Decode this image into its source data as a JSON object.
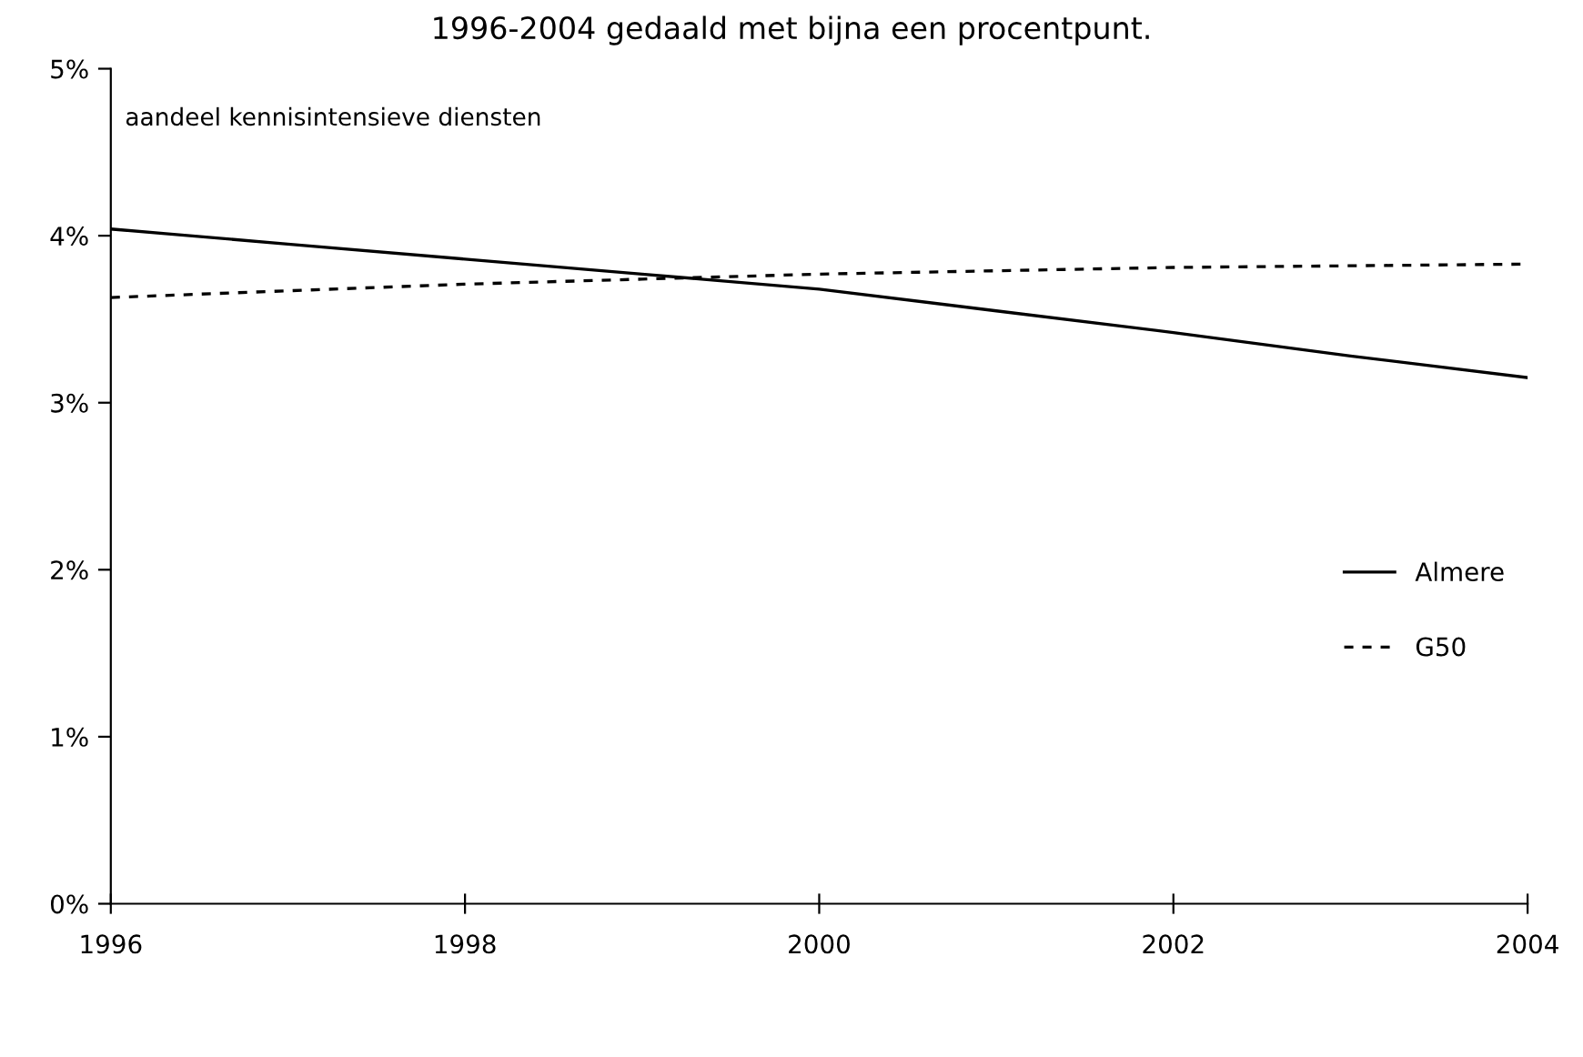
{
  "chart_data": {
    "type": "line",
    "title": "1996-2004 gedaald met bijna een procentpunt.",
    "ylabel": "aandeel kennisintensieve diensten",
    "x": [
      1996,
      1997,
      1998,
      1999,
      2000,
      2001,
      2002,
      2003,
      2004
    ],
    "series": [
      {
        "name": "Almere",
        "color": "#000000",
        "line_style": "solid",
        "values": [
          4.04,
          3.95,
          3.86,
          3.77,
          3.68,
          3.55,
          3.42,
          3.28,
          3.15
        ]
      },
      {
        "name": "G50",
        "color": "#000000",
        "line_style": "dotted",
        "values": [
          3.63,
          3.67,
          3.71,
          3.74,
          3.77,
          3.79,
          3.81,
          3.82,
          3.83
        ]
      }
    ],
    "xlim": [
      1996,
      2004
    ],
    "xticks": [
      1996,
      1998,
      2000,
      2002,
      2004
    ],
    "ylim": [
      0,
      5
    ],
    "yticks": [
      {
        "value": 0,
        "label": "0%"
      },
      {
        "value": 1,
        "label": "1%"
      },
      {
        "value": 2,
        "label": "2%"
      },
      {
        "value": 3,
        "label": "3%"
      },
      {
        "value": 4,
        "label": "4%"
      },
      {
        "value": 5,
        "label": "5%"
      }
    ],
    "grid": false,
    "legend": "right",
    "marker": "none"
  }
}
